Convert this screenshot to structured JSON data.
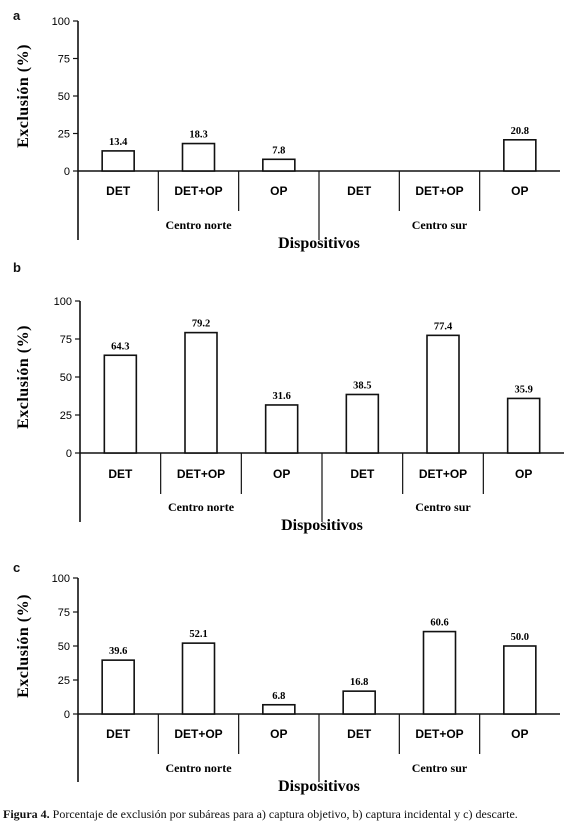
{
  "caption": {
    "label": "Figura 4.",
    "text": "Porcentaje de exclusión por subáreas para a) captura objetivo, b) captura incidental y c) descarte."
  },
  "chart_data": [
    {
      "type": "bar",
      "panel": "a",
      "ylabel": "Exclusión (%)",
      "xlabel": "Dispositivos",
      "ylim": [
        0,
        100
      ],
      "yticks": [
        "0",
        "25",
        "50",
        "75",
        "100"
      ],
      "groups": [
        "Centro norte",
        "Centro sur"
      ],
      "categories": [
        "DET",
        "DET+OP",
        "OP",
        "DET",
        "DET+OP",
        "OP"
      ],
      "values": [
        13.4,
        18.3,
        7.8,
        0,
        0,
        20.8
      ],
      "value_labels": [
        "13.4",
        "18.3",
        "7.8",
        "",
        "",
        "20.8"
      ]
    },
    {
      "type": "bar",
      "panel": "b",
      "ylabel": "Exclusión (%)",
      "xlabel": "Dispositivos",
      "ylim": [
        0,
        100
      ],
      "yticks": [
        "0",
        "25",
        "50",
        "75",
        "100"
      ],
      "groups": [
        "Centro norte",
        "Centro sur"
      ],
      "categories": [
        "DET",
        "DET+OP",
        "OP",
        "DET",
        "DET+OP",
        "OP"
      ],
      "values": [
        64.3,
        79.2,
        31.6,
        38.5,
        77.4,
        35.9
      ],
      "value_labels": [
        "64.3",
        "79.2",
        "31.6",
        "38.5",
        "77.4",
        "35.9"
      ]
    },
    {
      "type": "bar",
      "panel": "c",
      "ylabel": "Exclusión (%)",
      "xlabel": "Dispositivos",
      "ylim": [
        0,
        100
      ],
      "yticks": [
        "0",
        "25",
        "50",
        "75",
        "100"
      ],
      "groups": [
        "Centro norte",
        "Centro sur"
      ],
      "categories": [
        "DET",
        "DET+OP",
        "OP",
        "DET",
        "DET+OP",
        "OP"
      ],
      "values": [
        39.6,
        52.1,
        6.8,
        16.8,
        60.6,
        50.0
      ],
      "value_labels": [
        "39.6",
        "52.1",
        "6.8",
        "16.8",
        "60.6",
        "50.0"
      ]
    }
  ]
}
